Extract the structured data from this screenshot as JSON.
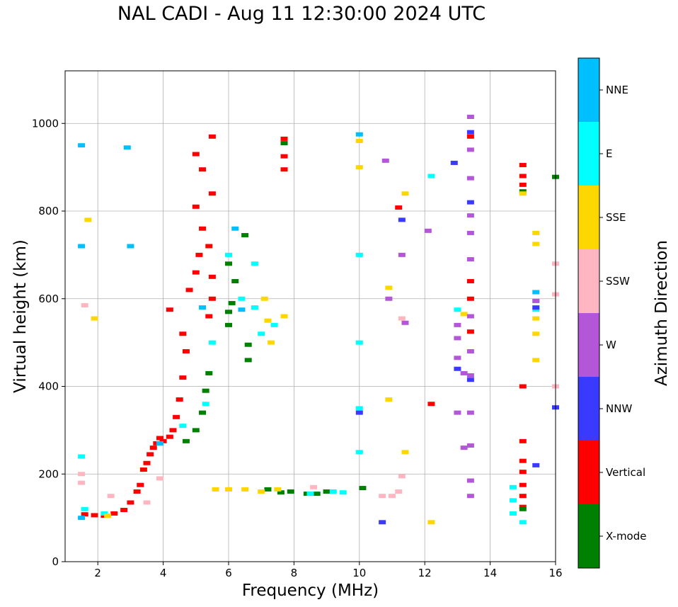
{
  "chart_data": {
    "type": "scatter",
    "title": "NAL CADI - Aug 11 12:30:00 2024 UTC",
    "xlabel": "Frequency (MHz)",
    "ylabel": "Virtual height (km)",
    "xlim": [
      1,
      16
    ],
    "ylim": [
      0,
      1120
    ],
    "xticks": [
      "2",
      "4",
      "6",
      "8",
      "10",
      "12",
      "14",
      "16"
    ],
    "yticks": [
      "0",
      "200",
      "400",
      "600",
      "800",
      "1000"
    ],
    "grid": true,
    "colorbar": {
      "label": "Azimuth Direction",
      "categories": [
        {
          "name": "X-mode",
          "color": "#008000"
        },
        {
          "name": "Vertical",
          "color": "#ff0000"
        },
        {
          "name": "NNW",
          "color": "#3a3aff"
        },
        {
          "name": "W",
          "color": "#b456d8"
        },
        {
          "name": "SSW",
          "color": "#ffb6c1"
        },
        {
          "name": "SSE",
          "color": "#ffd700"
        },
        {
          "name": "E",
          "color": "#00ffff"
        },
        {
          "name": "NNE",
          "color": "#00bfff"
        }
      ]
    },
    "series": [
      {
        "name": "Vertical",
        "points": [
          [
            1.6,
            108
          ],
          [
            1.9,
            106
          ],
          [
            2.2,
            105
          ],
          [
            2.5,
            110
          ],
          [
            2.8,
            118
          ],
          [
            3.0,
            135
          ],
          [
            3.2,
            160
          ],
          [
            3.3,
            175
          ],
          [
            3.4,
            210
          ],
          [
            3.5,
            225
          ],
          [
            3.6,
            245
          ],
          [
            3.7,
            260
          ],
          [
            3.8,
            270
          ],
          [
            3.9,
            282
          ],
          [
            4.0,
            275
          ],
          [
            4.2,
            285
          ],
          [
            4.3,
            300
          ],
          [
            4.4,
            330
          ],
          [
            4.5,
            370
          ],
          [
            4.6,
            420
          ],
          [
            4.7,
            480
          ],
          [
            4.2,
            575
          ],
          [
            4.6,
            520
          ],
          [
            4.8,
            620
          ],
          [
            5.0,
            660
          ],
          [
            5.1,
            700
          ],
          [
            5.2,
            760
          ],
          [
            5.0,
            810
          ],
          [
            5.4,
            560
          ],
          [
            5.5,
            600
          ],
          [
            5.5,
            650
          ],
          [
            5.4,
            720
          ],
          [
            5.5,
            840
          ],
          [
            5.0,
            930
          ],
          [
            5.5,
            970
          ],
          [
            5.2,
            895
          ],
          [
            7.7,
            965
          ],
          [
            7.7,
            925
          ],
          [
            7.7,
            895
          ],
          [
            11.2,
            808
          ],
          [
            12.2,
            360
          ],
          [
            13.4,
            640
          ],
          [
            13.4,
            600
          ],
          [
            13.4,
            525
          ],
          [
            13.4,
            970
          ],
          [
            15.0,
            905
          ],
          [
            15.0,
            880
          ],
          [
            15.0,
            860
          ],
          [
            15.0,
            400
          ],
          [
            15.0,
            275
          ],
          [
            15.0,
            230
          ],
          [
            15.0,
            205
          ],
          [
            15.0,
            175
          ],
          [
            15.0,
            150
          ],
          [
            15.0,
            125
          ]
        ]
      },
      {
        "name": "X-mode",
        "points": [
          [
            4.7,
            275
          ],
          [
            5.0,
            300
          ],
          [
            5.2,
            340
          ],
          [
            5.3,
            390
          ],
          [
            5.4,
            430
          ],
          [
            6.2,
            640
          ],
          [
            6.0,
            680
          ],
          [
            6.5,
            745
          ],
          [
            6.0,
            570
          ],
          [
            6.0,
            540
          ],
          [
            6.1,
            590
          ],
          [
            6.6,
            460
          ],
          [
            6.6,
            495
          ],
          [
            7.7,
            955
          ],
          [
            7.2,
            165
          ],
          [
            7.6,
            158
          ],
          [
            7.9,
            160
          ],
          [
            8.4,
            155
          ],
          [
            8.7,
            155
          ],
          [
            9.0,
            160
          ],
          [
            10.1,
            168
          ],
          [
            15.0,
            120
          ],
          [
            16.0,
            878
          ],
          [
            15.0,
            845
          ]
        ]
      },
      {
        "name": "E",
        "points": [
          [
            1.5,
            240
          ],
          [
            1.6,
            120
          ],
          [
            2.2,
            110
          ],
          [
            4.6,
            310
          ],
          [
            5.3,
            360
          ],
          [
            5.5,
            500
          ],
          [
            6.4,
            600
          ],
          [
            7.0,
            520
          ],
          [
            7.4,
            540
          ],
          [
            6.8,
            580
          ],
          [
            6.0,
            700
          ],
          [
            6.8,
            680
          ],
          [
            10.0,
            700
          ],
          [
            10.0,
            500
          ],
          [
            10.0,
            350
          ],
          [
            10.0,
            250
          ],
          [
            8.5,
            155
          ],
          [
            9.2,
            160
          ],
          [
            9.5,
            158
          ],
          [
            12.2,
            880
          ],
          [
            13.0,
            575
          ],
          [
            14.7,
            170
          ],
          [
            14.7,
            140
          ],
          [
            14.7,
            110
          ],
          [
            15.0,
            90
          ],
          [
            15.4,
            575
          ],
          [
            15.4,
            595
          ]
        ]
      },
      {
        "name": "NNE",
        "points": [
          [
            1.5,
            950
          ],
          [
            1.5,
            720
          ],
          [
            1.5,
            100
          ],
          [
            2.9,
            945
          ],
          [
            3.0,
            720
          ],
          [
            3.9,
            270
          ],
          [
            5.2,
            580
          ],
          [
            6.2,
            760
          ],
          [
            6.4,
            575
          ],
          [
            10.0,
            975
          ],
          [
            15.4,
            615
          ]
        ]
      },
      {
        "name": "SSE",
        "points": [
          [
            1.7,
            780
          ],
          [
            1.9,
            555
          ],
          [
            2.3,
            105
          ],
          [
            5.6,
            165
          ],
          [
            6.0,
            165
          ],
          [
            6.5,
            165
          ],
          [
            7.0,
            160
          ],
          [
            7.5,
            165
          ],
          [
            7.2,
            550
          ],
          [
            7.3,
            500
          ],
          [
            7.7,
            560
          ],
          [
            7.1,
            600
          ],
          [
            10.0,
            900
          ],
          [
            10.0,
            960
          ],
          [
            10.9,
            625
          ],
          [
            10.9,
            370
          ],
          [
            11.4,
            250
          ],
          [
            11.4,
            840
          ],
          [
            13.2,
            565
          ],
          [
            15.4,
            750
          ],
          [
            15.4,
            725
          ],
          [
            15.4,
            555
          ],
          [
            15.4,
            520
          ],
          [
            15.4,
            460
          ],
          [
            15.0,
            840
          ],
          [
            12.2,
            90
          ]
        ]
      },
      {
        "name": "SSW",
        "points": [
          [
            1.5,
            200
          ],
          [
            1.5,
            180
          ],
          [
            1.6,
            585
          ],
          [
            2.4,
            150
          ],
          [
            3.5,
            135
          ],
          [
            3.9,
            190
          ],
          [
            8.6,
            170
          ],
          [
            10.7,
            150
          ],
          [
            11.0,
            150
          ],
          [
            11.2,
            160
          ],
          [
            11.3,
            195
          ],
          [
            11.3,
            555
          ],
          [
            16.0,
            680
          ],
          [
            16.0,
            610
          ],
          [
            16.0,
            400
          ]
        ]
      },
      {
        "name": "W",
        "points": [
          [
            10.8,
            915
          ],
          [
            10.9,
            600
          ],
          [
            11.3,
            700
          ],
          [
            11.4,
            545
          ],
          [
            12.1,
            755
          ],
          [
            13.0,
            540
          ],
          [
            13.0,
            510
          ],
          [
            13.0,
            465
          ],
          [
            13.2,
            430
          ],
          [
            13.0,
            340
          ],
          [
            13.2,
            260
          ],
          [
            13.4,
            1015
          ],
          [
            13.4,
            940
          ],
          [
            13.4,
            875
          ],
          [
            13.4,
            790
          ],
          [
            13.4,
            750
          ],
          [
            13.4,
            690
          ],
          [
            13.4,
            560
          ],
          [
            13.4,
            480
          ],
          [
            13.4,
            425
          ],
          [
            13.4,
            340
          ],
          [
            13.4,
            265
          ],
          [
            13.4,
            185
          ],
          [
            13.4,
            150
          ],
          [
            15.4,
            595
          ]
        ]
      },
      {
        "name": "NNW",
        "points": [
          [
            10.0,
            340
          ],
          [
            10.7,
            90
          ],
          [
            11.3,
            780
          ],
          [
            12.9,
            910
          ],
          [
            13.0,
            440
          ],
          [
            13.4,
            980
          ],
          [
            13.4,
            820
          ],
          [
            13.4,
            415
          ],
          [
            15.4,
            580
          ],
          [
            15.4,
            220
          ],
          [
            16.0,
            352
          ]
        ]
      }
    ]
  }
}
